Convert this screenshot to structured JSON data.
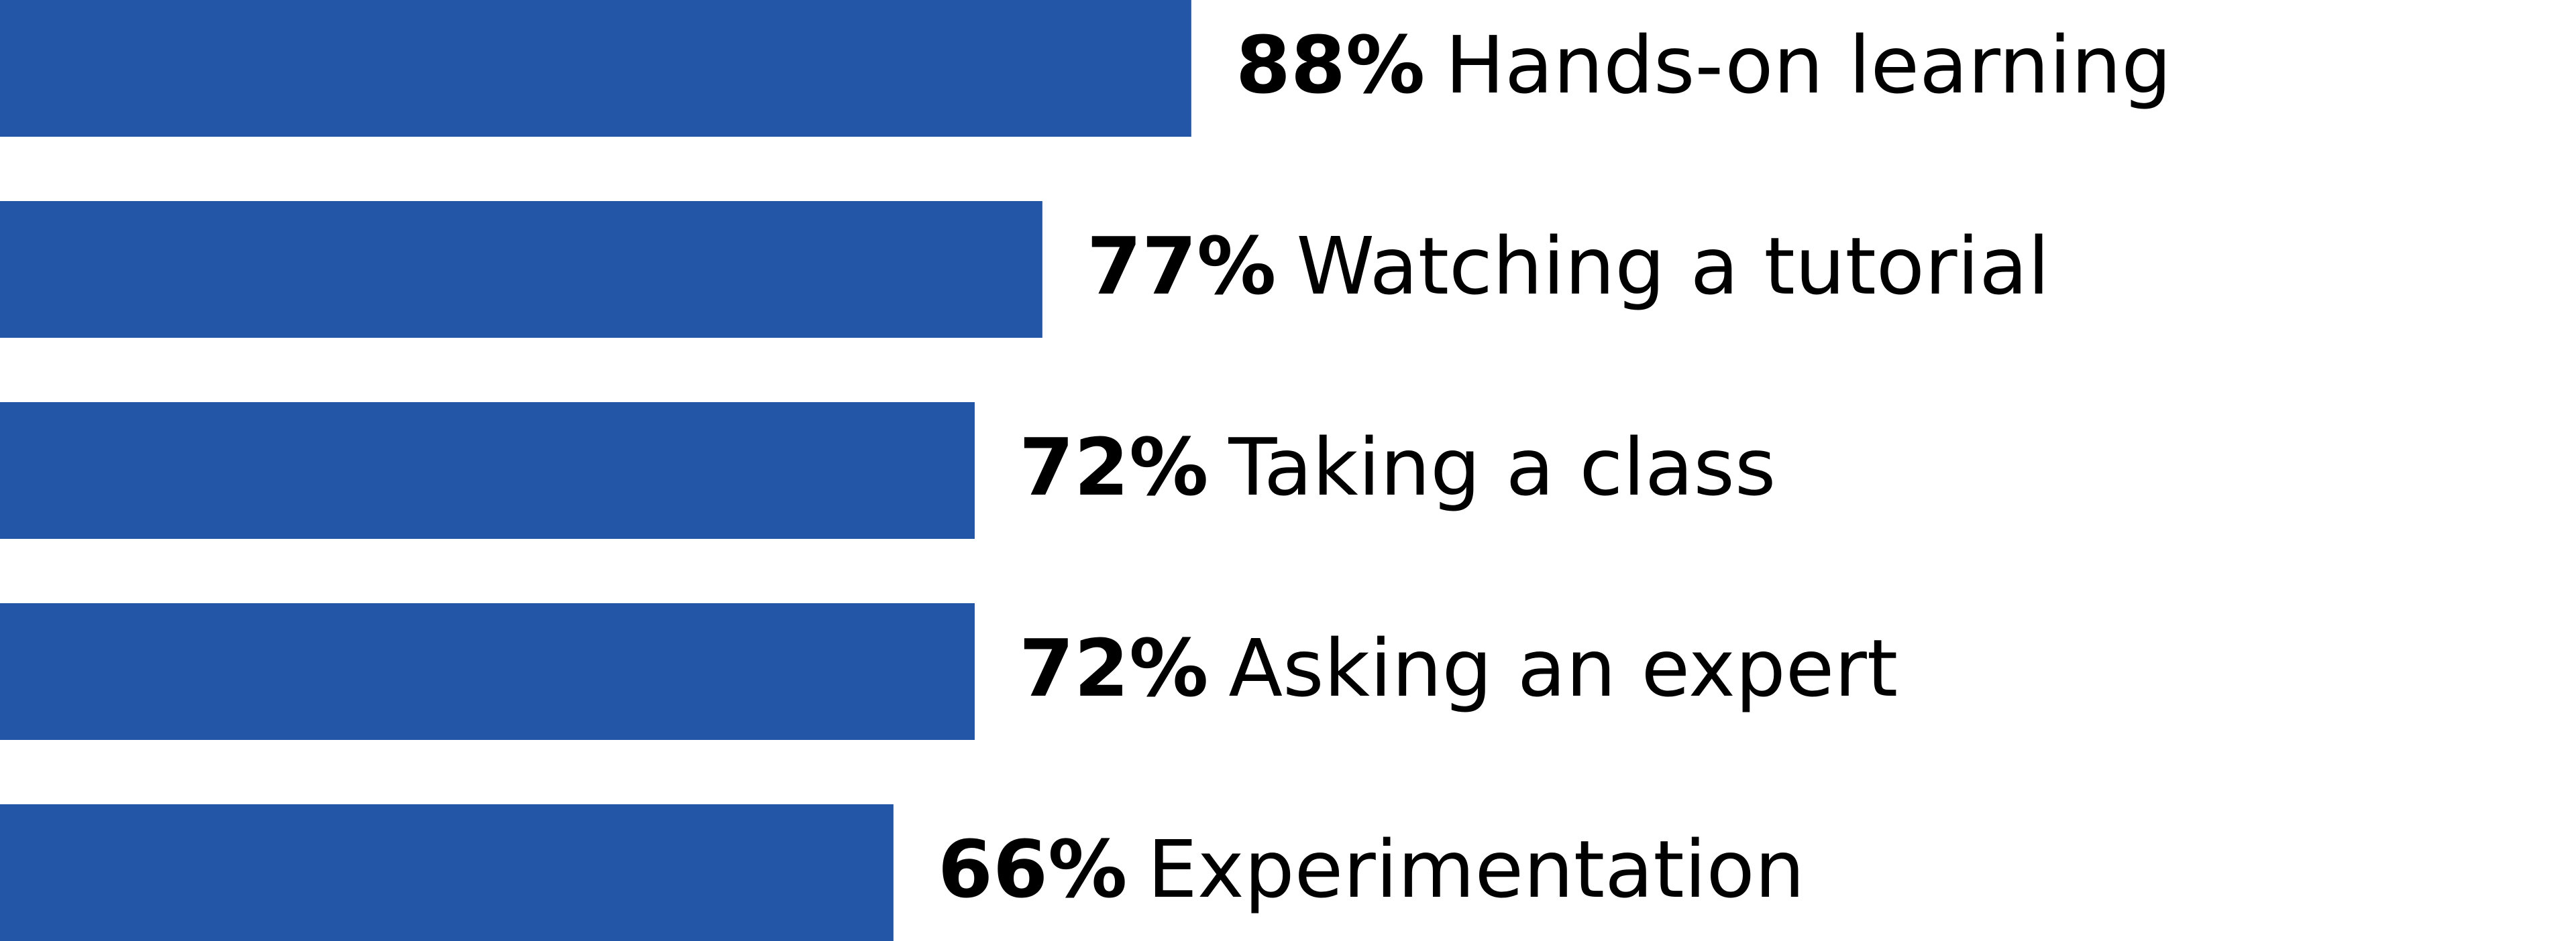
{
  "chart_data": {
    "type": "bar",
    "orientation": "horizontal",
    "categories": [
      "Hands-on learning",
      "Watching a tutorial",
      "Taking a class",
      "Asking an expert",
      "Experimentation"
    ],
    "values": [
      88,
      77,
      72,
      72,
      66
    ],
    "value_labels": [
      "88%",
      "77%",
      "72%",
      "72%",
      "66%"
    ],
    "color": "#2356a6",
    "xlim": [
      0,
      100
    ]
  }
}
